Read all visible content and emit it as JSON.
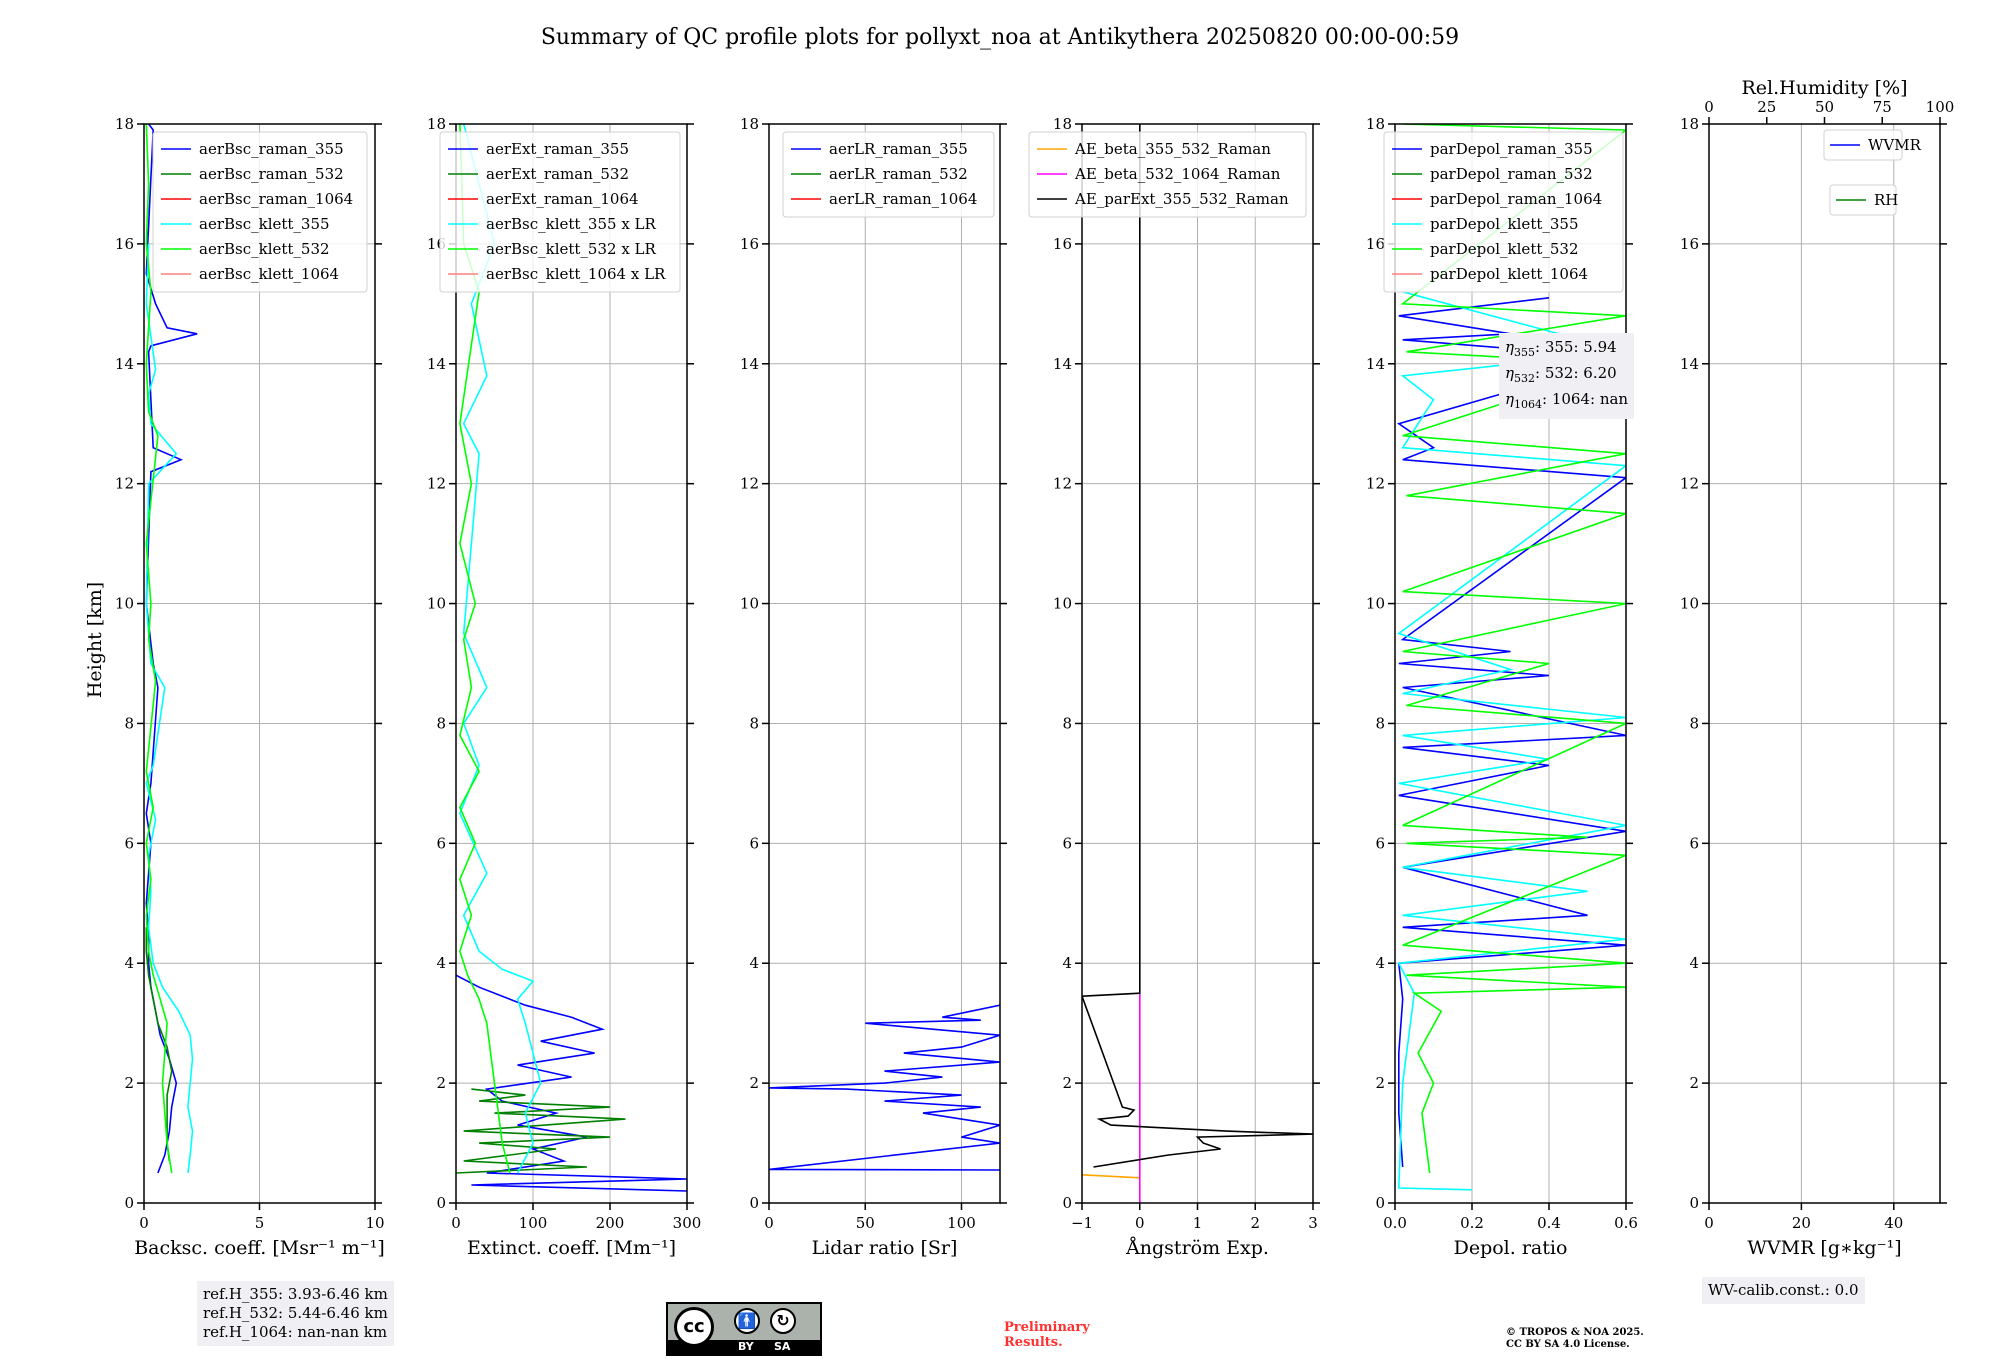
{
  "title": "Summary of QC profile plots for pollyxt_noa at Antikythera 20250820 00:00-00:59",
  "ylabel": "Height [km]",
  "yticks": [
    "0",
    "2",
    "4",
    "6",
    "8",
    "10",
    "12",
    "14",
    "16",
    "18"
  ],
  "colors": {
    "raman_355": "#0000ff",
    "raman_532": "#008000",
    "raman_1064": "#ff0000",
    "klett_355": "#00ffff",
    "klett_532": "#00ff00",
    "klett_1064": "#ff8080",
    "ae1": "#ffa500",
    "ae2": "#ff00ff",
    "ae3": "#000000"
  },
  "chart_data": [
    {
      "type": "line",
      "xlabel": "Backsc. coeff. [Msr⁻¹ m⁻¹]",
      "xlim": [
        0,
        10
      ],
      "ylim": [
        0,
        18
      ],
      "xticks": [
        "0",
        "5",
        "10"
      ],
      "legend": [
        "aerBsc_raman_355",
        "aerBsc_raman_532",
        "aerBsc_raman_1064",
        "aerBsc_klett_355",
        "aerBsc_klett_532",
        "aerBsc_klett_1064"
      ],
      "series": [
        {
          "name": "aerBsc_raman_355",
          "x": [
            0.6,
            0.9,
            1.1,
            1.2,
            1.4,
            1.1,
            0.7,
            0.5,
            0.3,
            0.2,
            0.2,
            0.1,
            0.2,
            0.3,
            0.1,
            0.3,
            0.6,
            0.4,
            0.1,
            0.3,
            1.6,
            0.4,
            0.2,
            0.3,
            2.3,
            1.0,
            0.5,
            0.1,
            0.4,
            0.2
          ],
          "y": [
            0.5,
            0.8,
            1.2,
            1.6,
            2.0,
            2.4,
            2.8,
            3.2,
            3.6,
            4.0,
            4.5,
            5.0,
            5.5,
            6.0,
            6.5,
            7.0,
            8.6,
            9.0,
            10.0,
            12.2,
            12.4,
            12.6,
            14.2,
            14.3,
            14.5,
            14.6,
            15.0,
            15.5,
            17.9,
            18.0
          ]
        },
        {
          "name": "aerBsc_raman_532",
          "x": [
            1.1,
            1.0,
            1.0,
            1.0,
            1.2,
            1.0,
            0.6,
            0.4,
            0.2,
            0.1,
            0.1
          ],
          "y": [
            0.7,
            1.0,
            1.4,
            1.8,
            2.2,
            2.6,
            3.0,
            3.4,
            3.8,
            4.2,
            4.6
          ]
        },
        {
          "name": "aerBsc_klett_355",
          "x": [
            1.9,
            2.0,
            2.1,
            1.9,
            2.0,
            2.1,
            2.0,
            1.5,
            0.8,
            0.4,
            0.2,
            0.3,
            0.2,
            0.5,
            0.1,
            0.4,
            0.9,
            0.3,
            0.1,
            0.2,
            1.4,
            0.3,
            0.2,
            0.5,
            0.1,
            0.2
          ],
          "y": [
            0.5,
            0.8,
            1.2,
            1.6,
            2.0,
            2.4,
            2.8,
            3.2,
            3.6,
            4.0,
            4.6,
            5.2,
            5.8,
            6.4,
            7.0,
            7.3,
            8.6,
            9.0,
            10.0,
            12.0,
            12.5,
            13.0,
            13.5,
            13.9,
            15.0,
            16.0
          ]
        },
        {
          "name": "aerBsc_klett_532",
          "x": [
            1.2,
            1.0,
            0.9,
            0.8,
            0.9,
            1.0,
            0.7,
            0.4,
            0.2,
            0.1,
            0.3,
            0.1,
            0.4,
            0.1,
            0.5,
            0.2,
            0.3,
            0.1,
            0.6,
            0.2,
            0.1,
            0.3,
            0.1,
            0.2,
            0.1
          ],
          "y": [
            0.5,
            1.0,
            1.5,
            2.0,
            2.5,
            3.0,
            3.4,
            3.8,
            4.2,
            4.8,
            5.4,
            6.0,
            6.6,
            7.2,
            8.7,
            9.4,
            10.0,
            11.0,
            12.8,
            13.2,
            14.0,
            15.2,
            16.0,
            17.0,
            18.0
          ]
        }
      ],
      "ref_note": [
        "ref.H_355: 3.93-6.46 km",
        "ref.H_532: 5.44-6.46 km",
        "ref.H_1064: nan-nan km"
      ]
    },
    {
      "type": "line",
      "xlabel": "Extinct. coeff. [Mm⁻¹]",
      "xlim": [
        0,
        300
      ],
      "ylim": [
        0,
        18
      ],
      "xticks": [
        "0",
        "100",
        "200",
        "300"
      ],
      "legend": [
        "aerExt_raman_355",
        "aerExt_raman_532",
        "aerExt_raman_1064",
        "aerBsc_klett_355 x LR",
        "aerBsc_klett_532 x LR",
        "aerBsc_klett_1064 x LR"
      ],
      "series": [
        {
          "name": "aerExt_raman_355",
          "x": [
            300,
            20,
            300,
            40,
            140,
            100,
            170,
            80,
            130,
            60,
            40,
            150,
            80,
            180,
            110,
            190,
            150,
            90,
            70,
            30,
            0
          ],
          "y": [
            0.2,
            0.3,
            0.4,
            0.5,
            0.7,
            0.9,
            1.1,
            1.3,
            1.5,
            1.7,
            1.9,
            2.1,
            2.3,
            2.5,
            2.7,
            2.9,
            3.1,
            3.3,
            3.4,
            3.6,
            3.8
          ]
        },
        {
          "name": "aerExt_raman_532",
          "x": [
            0,
            170,
            10,
            130,
            30,
            200,
            10,
            220,
            50,
            200,
            30,
            90,
            20
          ],
          "y": [
            0.5,
            0.6,
            0.7,
            0.9,
            1.0,
            1.1,
            1.2,
            1.4,
            1.5,
            1.6,
            1.7,
            1.8,
            1.9
          ]
        },
        {
          "name": "aerBsc_klett_355 x LR",
          "x": [
            80,
            100,
            90,
            110,
            100,
            90,
            80,
            100,
            60,
            30,
            10,
            40,
            5,
            30,
            10,
            40,
            10,
            30,
            10,
            40,
            20,
            50,
            10
          ],
          "y": [
            0.5,
            1.0,
            1.5,
            2.0,
            2.5,
            3.0,
            3.4,
            3.7,
            3.9,
            4.2,
            4.8,
            5.5,
            6.5,
            7.3,
            8.0,
            8.6,
            9.5,
            12.5,
            13.0,
            13.8,
            15.0,
            16.0,
            18.0
          ]
        },
        {
          "name": "aerBsc_klett_532 x LR",
          "x": [
            70,
            60,
            55,
            50,
            45,
            40,
            30,
            15,
            5,
            20,
            5,
            25,
            5,
            30,
            5,
            20,
            10,
            25,
            5,
            20,
            5,
            30,
            10,
            5
          ],
          "y": [
            0.5,
            1.0,
            1.5,
            2.0,
            2.5,
            3.0,
            3.4,
            3.8,
            4.2,
            4.8,
            5.4,
            6.0,
            6.6,
            7.2,
            7.8,
            8.6,
            9.4,
            10.0,
            11.0,
            12.0,
            13.0,
            15.2,
            16.0,
            18.0
          ]
        }
      ]
    },
    {
      "type": "line",
      "xlabel": "Lidar ratio [Sr]",
      "xlim": [
        0,
        120
      ],
      "ylim": [
        0,
        18
      ],
      "xticks": [
        "0",
        "50",
        "100"
      ],
      "legend": [
        "aerLR_raman_355",
        "aerLR_raman_532",
        "aerLR_raman_1064"
      ],
      "series": [
        {
          "name": "aerLR_raman_355",
          "x": [
            120,
            0,
            120,
            100,
            120,
            80,
            110,
            60,
            100,
            40,
            0,
            60,
            90,
            60,
            120,
            70,
            100,
            120,
            50,
            110,
            90,
            120
          ],
          "y": [
            0.55,
            0.56,
            1.0,
            1.1,
            1.3,
            1.5,
            1.6,
            1.7,
            1.8,
            1.9,
            1.92,
            2.0,
            2.1,
            2.2,
            2.35,
            2.5,
            2.6,
            2.8,
            3.0,
            3.05,
            3.1,
            3.3
          ]
        }
      ]
    },
    {
      "type": "line",
      "xlabel": "Ångström Exp.",
      "xlim": [
        -1,
        3
      ],
      "ylim": [
        0,
        18
      ],
      "xticks": [
        "−1",
        "0",
        "1",
        "2",
        "3"
      ],
      "legend": [
        "AE_beta_355_532_Raman",
        "AE_beta_532_1064_Raman",
        "AE_parExt_355_532_Raman"
      ],
      "series": [
        {
          "name": "AE_beta_355_532_Raman",
          "x": [
            -1,
            0
          ],
          "y": [
            0.47,
            0.42
          ]
        },
        {
          "name": "AE_beta_532_1064_Raman",
          "x": [
            0,
            0
          ],
          "y": [
            0,
            3.5
          ]
        },
        {
          "name": "AE_parExt_355_532_Raman",
          "x": [
            -0.8,
            0.5,
            1.4,
            1.1,
            1.0,
            3.0,
            1.5,
            -0.5,
            -0.7,
            -0.2,
            -0.1,
            -0.3,
            -1.0,
            0,
            0
          ],
          "y": [
            0.6,
            0.8,
            0.9,
            1.0,
            1.1,
            1.15,
            1.2,
            1.3,
            1.4,
            1.45,
            1.55,
            1.6,
            3.45,
            3.5,
            18.0
          ]
        }
      ]
    },
    {
      "type": "line",
      "xlabel": "Depol. ratio",
      "xlim": [
        0,
        0.6
      ],
      "ylim": [
        0,
        18
      ],
      "xticks": [
        "0.0",
        "0.2",
        "0.4",
        "0.6"
      ],
      "legend": [
        "parDepol_raman_355",
        "parDepol_raman_532",
        "parDepol_raman_1064",
        "parDepol_klett_355",
        "parDepol_klett_532",
        "parDepol_klett_1064"
      ],
      "series": [
        {
          "name": "parDepol_raman_355",
          "x": [
            0.02,
            0.01,
            0.01,
            0.02,
            0.01,
            0.6,
            0.02,
            0.5,
            0.02,
            0.6,
            0.01,
            0.4,
            0.02,
            0.6,
            0.02,
            0.4,
            0.01,
            0.3,
            0.02,
            0.6,
            0.02,
            0.1,
            0.01,
            0.6,
            0.02,
            0.3,
            0.01,
            0.4
          ],
          "y": [
            0.6,
            1.5,
            2.5,
            3.4,
            4.0,
            4.3,
            4.6,
            4.8,
            5.6,
            6.2,
            6.8,
            7.3,
            7.6,
            7.8,
            8.6,
            8.8,
            9.0,
            9.2,
            9.4,
            12.1,
            12.4,
            12.6,
            13.0,
            14.1,
            14.4,
            14.5,
            14.8,
            15.1
          ]
        },
        {
          "name": "parDepol_klett_355",
          "x": [
            0.2,
            0.01,
            0.02,
            0.05,
            0.01,
            0.6,
            0.02,
            0.5,
            0.02,
            0.6,
            0.01,
            0.4,
            0.02,
            0.6,
            0.02,
            0.3,
            0.01,
            0.6,
            0.02,
            0.1,
            0.02,
            0.6,
            0.02
          ],
          "y": [
            0.22,
            0.25,
            2.0,
            3.5,
            4.0,
            4.4,
            4.8,
            5.2,
            5.6,
            6.3,
            7.0,
            7.4,
            7.8,
            8.1,
            8.5,
            8.9,
            9.5,
            12.3,
            12.6,
            13.4,
            13.8,
            14.2,
            15.2
          ]
        },
        {
          "name": "parDepol_klett_532",
          "x": [
            0.09,
            0.08,
            0.07,
            0.1,
            0.06,
            0.12,
            0.05,
            0.6,
            0.03,
            0.6,
            0.02,
            0.6,
            0.03,
            0.5,
            0.02,
            0.6,
            0.03,
            0.4,
            0.02,
            0.6,
            0.02,
            0.6,
            0.03,
            0.6,
            0.02,
            0.6,
            0.03,
            0.6,
            0.02,
            0.6,
            0.02
          ],
          "y": [
            0.5,
            1.0,
            1.5,
            2.0,
            2.5,
            3.2,
            3.5,
            3.6,
            3.8,
            4.0,
            4.3,
            5.8,
            6.0,
            6.1,
            6.3,
            8.0,
            8.3,
            9.0,
            9.2,
            10.0,
            10.2,
            11.5,
            11.8,
            12.5,
            12.8,
            14.0,
            14.2,
            14.8,
            15.0,
            17.9,
            18.0
          ]
        }
      ],
      "eta": [
        "355: 5.94",
        "532: 6.20",
        "1064: nan"
      ]
    },
    {
      "type": "line",
      "xlabel": "WVMR [g∗kg⁻¹]",
      "xlim": [
        0,
        50
      ],
      "ylim": [
        0,
        18
      ],
      "xticks": [
        "0",
        "20",
        "40"
      ],
      "x2label": "Rel.Humidity [%]",
      "x2lim": [
        0,
        100
      ],
      "x2ticks": [
        "0",
        "25",
        "50",
        "75",
        "100"
      ],
      "legend": [
        "WVMR",
        "RH"
      ],
      "series": [],
      "wv_note": "WV-calib.const.: 0.0"
    }
  ],
  "footer": {
    "cc_by": "BY",
    "cc_sa": "SA",
    "cc_mark": "cc",
    "preliminary": [
      "Preliminary",
      "Results."
    ],
    "copyright": [
      "© TROPOS & NOA 2025.",
      "CC BY SA 4.0 License."
    ]
  }
}
